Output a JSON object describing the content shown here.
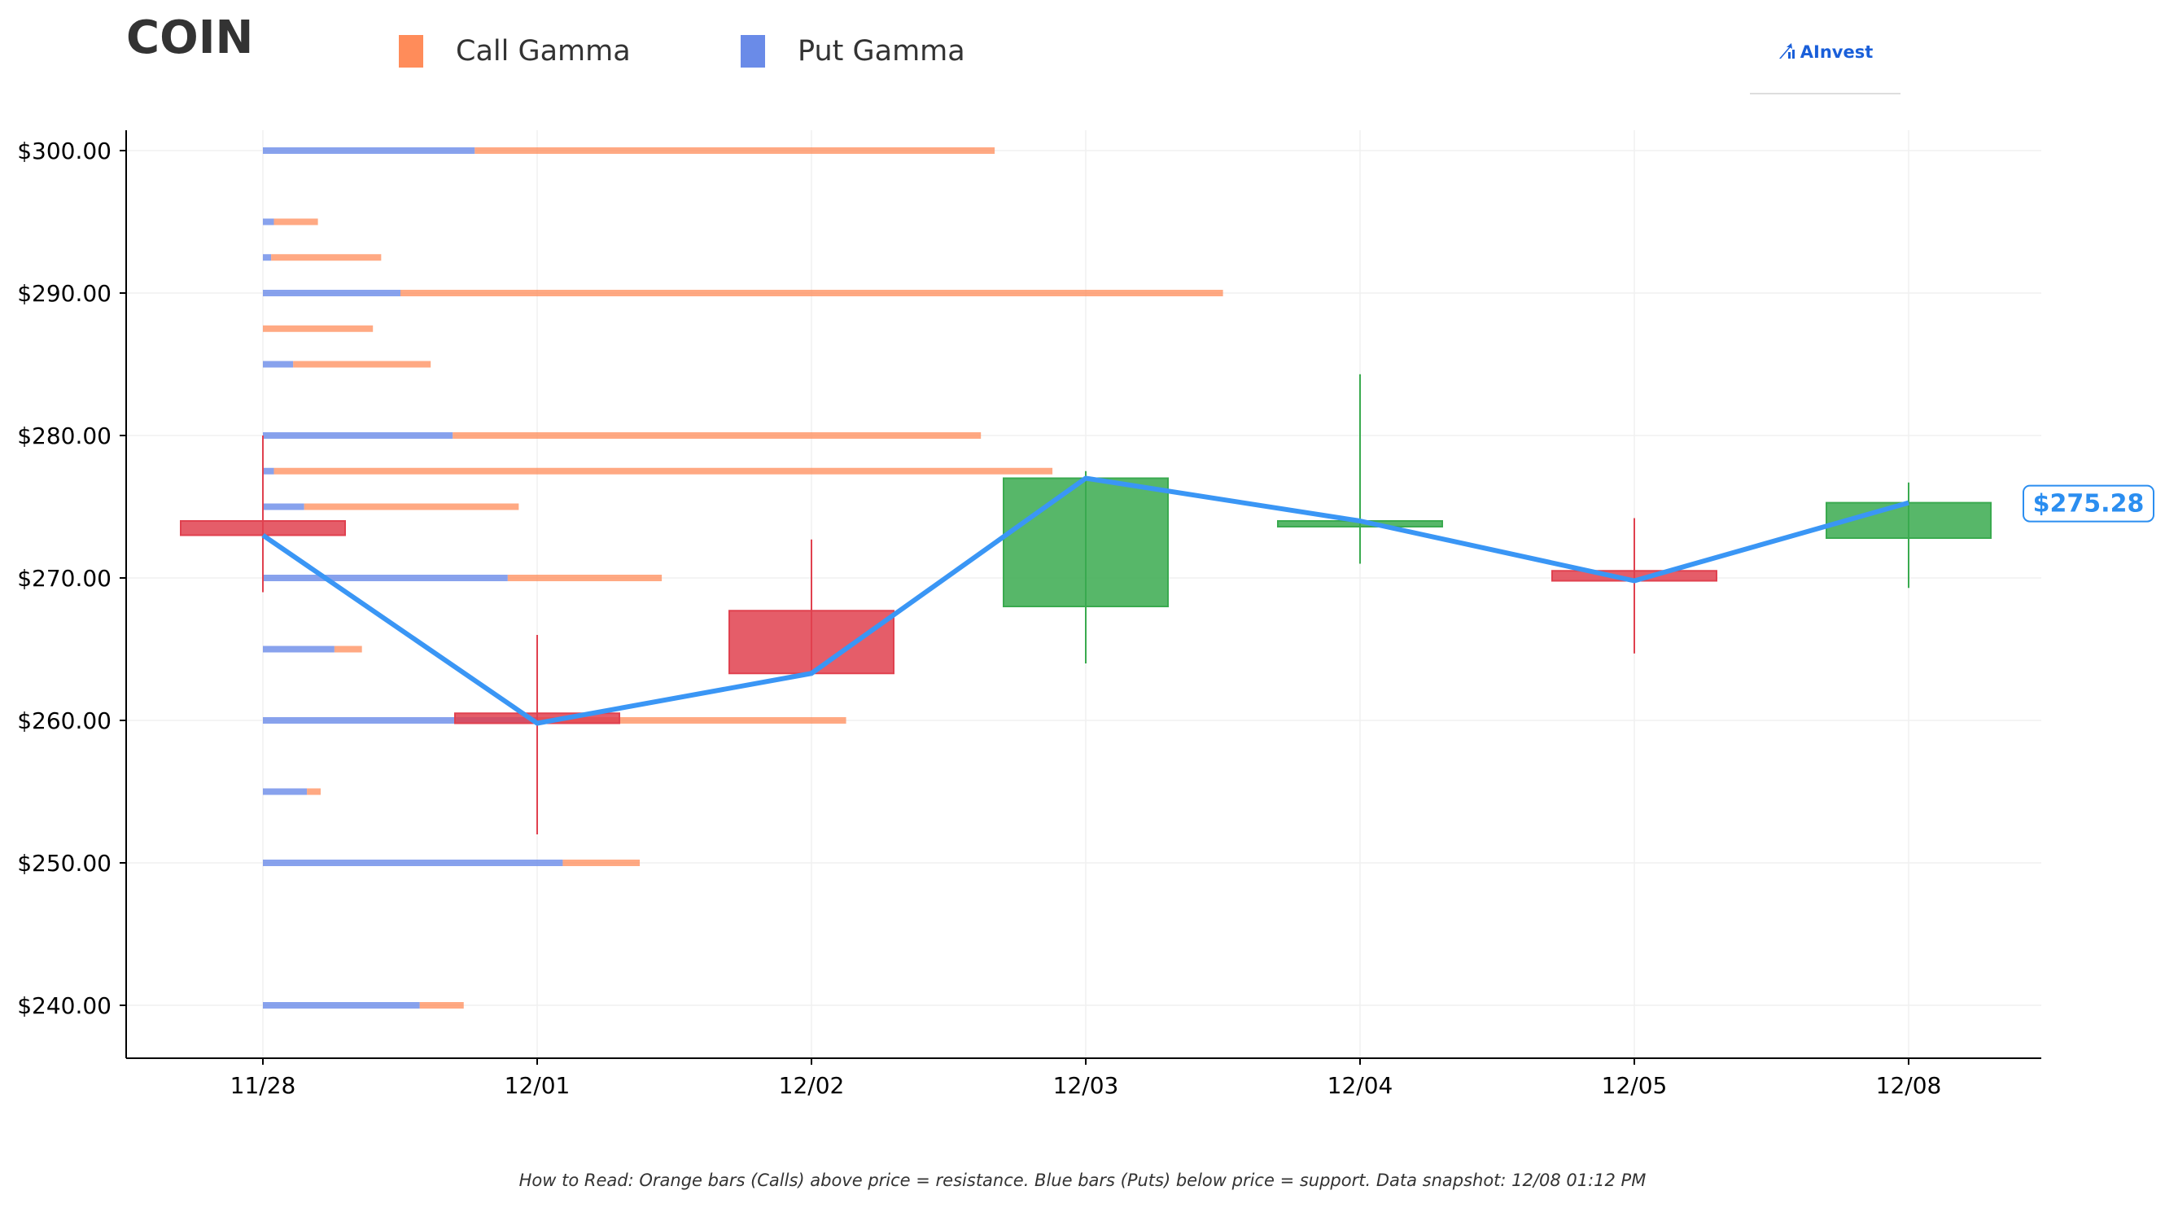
{
  "header": {
    "ticker": "COIN",
    "logo_text": "AInvest"
  },
  "legend": {
    "call_label": "Call Gamma",
    "put_label": "Put Gamma",
    "call_color": "#ff8c5a",
    "put_color": "#6a8be8"
  },
  "footer": {
    "note": "How to Read: Orange bars (Calls) above price = resistance. Blue bars (Puts) below price = support. Data snapshot: 12/08 01:12 PM"
  },
  "chart_data": {
    "type": "candlestick",
    "categories": [
      "11/28",
      "12/01",
      "12/02",
      "12/03",
      "12/04",
      "12/05",
      "12/08"
    ],
    "ylim": [
      236,
      300
    ],
    "yticks": [
      240,
      250,
      260,
      270,
      280,
      290,
      300
    ],
    "ytick_labels": [
      "$240.00",
      "$250.00",
      "$260.00",
      "$270.00",
      "$280.00",
      "$290.00",
      "$300.00"
    ],
    "candles": [
      {
        "date": "11/28",
        "open": 274,
        "high": 280,
        "low": 269,
        "close": 273,
        "direction": "down"
      },
      {
        "date": "12/01",
        "open": 260.5,
        "high": 266,
        "low": 252,
        "close": 259.8,
        "direction": "down"
      },
      {
        "date": "12/02",
        "open": 267.7,
        "high": 272.7,
        "low": 263.3,
        "close": 263.3,
        "direction": "down"
      },
      {
        "date": "12/03",
        "open": 268,
        "high": 277.5,
        "low": 264,
        "close": 277,
        "direction": "up"
      },
      {
        "date": "12/04",
        "open": 273.6,
        "high": 284.3,
        "low": 271,
        "close": 274,
        "direction": "up"
      },
      {
        "date": "12/05",
        "open": 270.5,
        "high": 274.2,
        "low": 264.7,
        "close": 269.8,
        "direction": "down"
      },
      {
        "date": "12/08",
        "open": 272.8,
        "high": 276.7,
        "low": 269.3,
        "close": 275.28,
        "direction": "up"
      }
    ],
    "close_line": [
      273,
      259.8,
      263.3,
      277,
      274,
      269.8,
      275.28
    ],
    "last_price_label": "$275.28",
    "gamma_x_unit": "days",
    "gamma_bars": [
      {
        "strike": 300,
        "put": 0.77,
        "call": 1.89
      },
      {
        "strike": 295,
        "put": 0.04,
        "call": 0.16
      },
      {
        "strike": 292.5,
        "put": 0.03,
        "call": 0.4
      },
      {
        "strike": 290,
        "put": 0.5,
        "call": 2.99
      },
      {
        "strike": 287.5,
        "put": 0,
        "call": 0.4
      },
      {
        "strike": 285,
        "put": 0.11,
        "call": 0.5
      },
      {
        "strike": 280,
        "put": 0.69,
        "call": 1.92
      },
      {
        "strike": 277.5,
        "put": 0.04,
        "call": 2.83
      },
      {
        "strike": 275,
        "put": 0.15,
        "call": 0.78
      },
      {
        "strike": 270,
        "put": 0.89,
        "call": 0.56
      },
      {
        "strike": 265,
        "put": 0.26,
        "call": 0.1
      },
      {
        "strike": 260,
        "put": 1.0,
        "call": 1.12
      },
      {
        "strike": 255,
        "put": 0.16,
        "call": 0.05
      },
      {
        "strike": 250,
        "put": 1.09,
        "call": 0.28
      },
      {
        "strike": 240,
        "put": 0.57,
        "call": 0.16
      }
    ],
    "colors": {
      "up": "#3aaa4f",
      "down": "#e0414f",
      "line": "#3a96f5",
      "label": "#2b8ef0"
    },
    "grid": true
  }
}
